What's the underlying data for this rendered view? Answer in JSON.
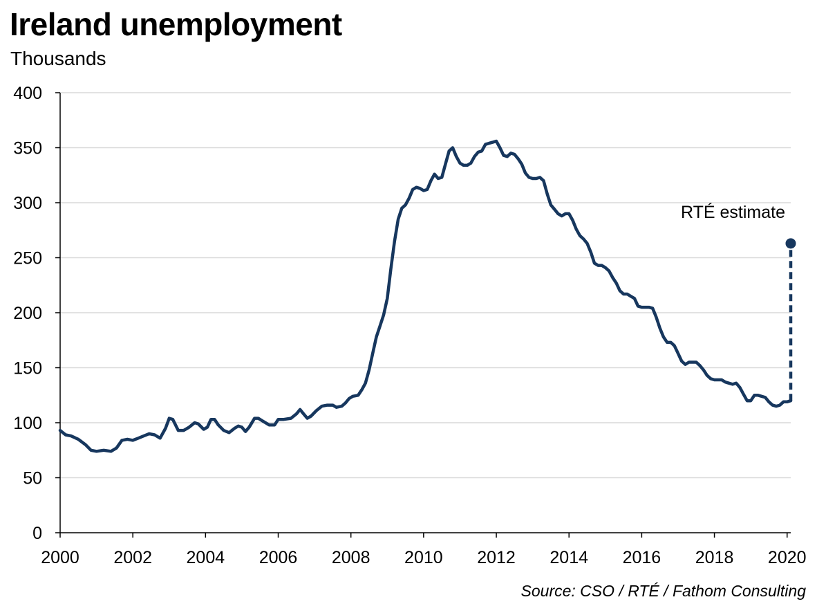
{
  "chart_data": {
    "type": "line",
    "title": "Ireland unemployment",
    "subtitle": "Thousands",
    "source": "Source: CSO / RTÉ / Fathom Consulting",
    "xlim": [
      2000,
      2020.1
    ],
    "ylim": [
      0,
      400
    ],
    "x_ticks": [
      2000,
      2002,
      2004,
      2006,
      2008,
      2010,
      2012,
      2014,
      2016,
      2018,
      2020
    ],
    "y_ticks": [
      0,
      50,
      100,
      150,
      200,
      250,
      300,
      350,
      400
    ],
    "grid": "horizontal",
    "line_color": "#17375e",
    "grid_color": "#d9d9d9",
    "series": [
      {
        "values": [
          [
            2000.0,
            93
          ],
          [
            2000.15,
            89
          ],
          [
            2000.3,
            88
          ],
          [
            2000.5,
            85
          ],
          [
            2000.7,
            80
          ],
          [
            2000.85,
            75
          ],
          [
            2001.0,
            74
          ],
          [
            2001.2,
            75
          ],
          [
            2001.4,
            74
          ],
          [
            2001.55,
            77
          ],
          [
            2001.7,
            84
          ],
          [
            2001.85,
            85
          ],
          [
            2002.0,
            84
          ],
          [
            2002.15,
            86
          ],
          [
            2002.3,
            88
          ],
          [
            2002.45,
            90
          ],
          [
            2002.6,
            89
          ],
          [
            2002.75,
            86
          ],
          [
            2002.9,
            95
          ],
          [
            2003.0,
            104
          ],
          [
            2003.1,
            103
          ],
          [
            2003.25,
            93
          ],
          [
            2003.4,
            93
          ],
          [
            2003.55,
            96
          ],
          [
            2003.7,
            100
          ],
          [
            2003.8,
            99
          ],
          [
            2003.95,
            94
          ],
          [
            2004.05,
            96
          ],
          [
            2004.15,
            103
          ],
          [
            2004.25,
            103
          ],
          [
            2004.35,
            98
          ],
          [
            2004.5,
            93
          ],
          [
            2004.65,
            91
          ],
          [
            2004.8,
            95
          ],
          [
            2004.9,
            97
          ],
          [
            2005.0,
            96
          ],
          [
            2005.1,
            92
          ],
          [
            2005.2,
            96
          ],
          [
            2005.35,
            104
          ],
          [
            2005.45,
            104
          ],
          [
            2005.6,
            101
          ],
          [
            2005.75,
            98
          ],
          [
            2005.9,
            98
          ],
          [
            2006.0,
            103
          ],
          [
            2006.15,
            103
          ],
          [
            2006.35,
            104
          ],
          [
            2006.5,
            108
          ],
          [
            2006.6,
            112
          ],
          [
            2006.7,
            108
          ],
          [
            2006.8,
            104
          ],
          [
            2006.9,
            106
          ],
          [
            2007.05,
            111
          ],
          [
            2007.2,
            115
          ],
          [
            2007.35,
            116
          ],
          [
            2007.5,
            116
          ],
          [
            2007.6,
            114
          ],
          [
            2007.75,
            115
          ],
          [
            2007.85,
            118
          ],
          [
            2007.95,
            122
          ],
          [
            2008.05,
            124
          ],
          [
            2008.2,
            125
          ],
          [
            2008.3,
            130
          ],
          [
            2008.4,
            136
          ],
          [
            2008.5,
            148
          ],
          [
            2008.6,
            163
          ],
          [
            2008.7,
            178
          ],
          [
            2008.8,
            188
          ],
          [
            2008.9,
            198
          ],
          [
            2009.0,
            213
          ],
          [
            2009.1,
            240
          ],
          [
            2009.2,
            265
          ],
          [
            2009.3,
            285
          ],
          [
            2009.4,
            295
          ],
          [
            2009.5,
            298
          ],
          [
            2009.6,
            304
          ],
          [
            2009.7,
            312
          ],
          [
            2009.8,
            314
          ],
          [
            2009.9,
            313
          ],
          [
            2010.0,
            311
          ],
          [
            2010.1,
            312
          ],
          [
            2010.2,
            320
          ],
          [
            2010.3,
            326
          ],
          [
            2010.4,
            322
          ],
          [
            2010.5,
            323
          ],
          [
            2010.6,
            335
          ],
          [
            2010.7,
            347
          ],
          [
            2010.8,
            350
          ],
          [
            2010.9,
            342
          ],
          [
            2011.0,
            336
          ],
          [
            2011.1,
            334
          ],
          [
            2011.2,
            334
          ],
          [
            2011.3,
            336
          ],
          [
            2011.4,
            342
          ],
          [
            2011.5,
            346
          ],
          [
            2011.6,
            347
          ],
          [
            2011.7,
            353
          ],
          [
            2011.8,
            354
          ],
          [
            2011.9,
            355
          ],
          [
            2012.0,
            356
          ],
          [
            2012.1,
            350
          ],
          [
            2012.2,
            343
          ],
          [
            2012.3,
            342
          ],
          [
            2012.4,
            345
          ],
          [
            2012.5,
            344
          ],
          [
            2012.6,
            340
          ],
          [
            2012.7,
            335
          ],
          [
            2012.8,
            327
          ],
          [
            2012.9,
            323
          ],
          [
            2013.0,
            322
          ],
          [
            2013.1,
            322
          ],
          [
            2013.2,
            323
          ],
          [
            2013.3,
            320
          ],
          [
            2013.4,
            308
          ],
          [
            2013.5,
            298
          ],
          [
            2013.6,
            294
          ],
          [
            2013.7,
            290
          ],
          [
            2013.8,
            288
          ],
          [
            2013.9,
            290
          ],
          [
            2014.0,
            290
          ],
          [
            2014.1,
            284
          ],
          [
            2014.2,
            276
          ],
          [
            2014.3,
            270
          ],
          [
            2014.4,
            267
          ],
          [
            2014.5,
            263
          ],
          [
            2014.6,
            255
          ],
          [
            2014.7,
            245
          ],
          [
            2014.8,
            243
          ],
          [
            2014.9,
            243
          ],
          [
            2015.0,
            241
          ],
          [
            2015.1,
            238
          ],
          [
            2015.2,
            232
          ],
          [
            2015.3,
            227
          ],
          [
            2015.4,
            220
          ],
          [
            2015.5,
            217
          ],
          [
            2015.6,
            217
          ],
          [
            2015.7,
            215
          ],
          [
            2015.8,
            213
          ],
          [
            2015.9,
            206
          ],
          [
            2016.0,
            205
          ],
          [
            2016.1,
            205
          ],
          [
            2016.2,
            205
          ],
          [
            2016.3,
            204
          ],
          [
            2016.4,
            196
          ],
          [
            2016.5,
            186
          ],
          [
            2016.6,
            178
          ],
          [
            2016.7,
            173
          ],
          [
            2016.8,
            173
          ],
          [
            2016.9,
            170
          ],
          [
            2017.0,
            163
          ],
          [
            2017.1,
            156
          ],
          [
            2017.2,
            153
          ],
          [
            2017.3,
            155
          ],
          [
            2017.4,
            155
          ],
          [
            2017.5,
            155
          ],
          [
            2017.6,
            152
          ],
          [
            2017.7,
            148
          ],
          [
            2017.8,
            143
          ],
          [
            2017.9,
            140
          ],
          [
            2018.0,
            139
          ],
          [
            2018.1,
            139
          ],
          [
            2018.2,
            139
          ],
          [
            2018.3,
            137
          ],
          [
            2018.4,
            136
          ],
          [
            2018.5,
            135
          ],
          [
            2018.6,
            136
          ],
          [
            2018.7,
            132
          ],
          [
            2018.8,
            126
          ],
          [
            2018.9,
            120
          ],
          [
            2019.0,
            120
          ],
          [
            2019.1,
            125
          ],
          [
            2019.2,
            125
          ],
          [
            2019.3,
            124
          ],
          [
            2019.4,
            123
          ],
          [
            2019.5,
            119
          ],
          [
            2019.6,
            116
          ],
          [
            2019.7,
            115
          ],
          [
            2019.8,
            116
          ],
          [
            2019.9,
            119
          ],
          [
            2020.0,
            119
          ],
          [
            2020.1,
            120
          ]
        ]
      }
    ],
    "estimate": {
      "label": "RTÉ estimate",
      "x": 2020.1,
      "from_y": 120,
      "value": 263,
      "line_style": "dashed",
      "marker": "circle"
    }
  }
}
